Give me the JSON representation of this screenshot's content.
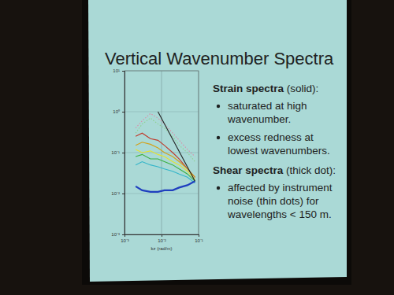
{
  "title": "Vertical Wavenumber Spectra",
  "sections": [
    {
      "heading": "Strain spectra",
      "note": "(solid):",
      "bullets": [
        [
          "saturated at high",
          "wavenumber."
        ],
        [
          "excess redness at",
          "lowest wavenumbers."
        ]
      ]
    },
    {
      "heading": "Shear spectra",
      "note": "(thick dot):",
      "bullets": [
        [
          "affected by instrument",
          "noise (thin dots) for",
          "wavelengths < 150 m."
        ]
      ]
    }
  ],
  "chart_data": {
    "type": "line",
    "log": true,
    "grid": true,
    "x_label": "kz (rad/m)",
    "xlim": [
      0.001,
      0.1
    ],
    "xticks": [
      {
        "value": 0.001,
        "label": "10⁻³"
      },
      {
        "value": 0.01,
        "label": "10⁻²"
      },
      {
        "value": 0.1,
        "label": "10⁻¹"
      }
    ],
    "ylim": [
      0.001,
      10
    ],
    "yticks": [
      {
        "value": 0.001,
        "label": "10⁻³"
      },
      {
        "value": 0.01,
        "label": "10⁻²"
      },
      {
        "value": 0.1,
        "label": "10⁻¹"
      },
      {
        "value": 1,
        "label": "10⁰"
      },
      {
        "value": 10,
        "label": "10¹"
      }
    ],
    "x": [
      0.002,
      0.003,
      0.005,
      0.008,
      0.012,
      0.02,
      0.03,
      0.05,
      0.08
    ],
    "series": [
      {
        "color": "#c0392b",
        "line_style": "solid",
        "values": [
          0.25,
          0.3,
          0.22,
          0.2,
          0.15,
          0.1,
          0.07,
          0.04,
          0.025
        ]
      },
      {
        "color": "#d4a017",
        "line_style": "solid",
        "values": [
          0.15,
          0.18,
          0.16,
          0.13,
          0.1,
          0.08,
          0.06,
          0.04,
          0.025
        ]
      },
      {
        "color": "#e6e22e",
        "line_style": "solid",
        "values": [
          0.12,
          0.1,
          0.11,
          0.09,
          0.08,
          0.06,
          0.05,
          0.035,
          0.022
        ]
      },
      {
        "color": "#3cb043",
        "line_style": "solid",
        "values": [
          0.08,
          0.09,
          0.07,
          0.07,
          0.06,
          0.05,
          0.04,
          0.03,
          0.02
        ]
      },
      {
        "color": "#33b5c9",
        "line_style": "solid",
        "values": [
          0.05,
          0.06,
          0.05,
          0.045,
          0.04,
          0.035,
          0.03,
          0.025,
          0.018
        ]
      },
      {
        "color": "#1f3fbf",
        "line_style": "thick",
        "values": [
          0.015,
          0.012,
          0.011,
          0.011,
          0.012,
          0.012,
          0.014,
          0.016,
          0.02
        ]
      },
      {
        "color": "#d98ca8",
        "line_style": "dotted",
        "values": [
          0.4,
          0.6,
          0.9,
          0.7,
          0.5,
          0.3,
          0.2,
          0.12,
          0.08
        ]
      },
      {
        "color": "#8fd18f",
        "line_style": "dotted",
        "values": [
          0.3,
          0.5,
          0.7,
          0.5,
          0.4,
          0.25,
          0.15,
          0.1,
          0.06
        ]
      },
      {
        "color": "#222222",
        "line_style": "solid",
        "x": [
          0.008,
          0.08
        ],
        "values": [
          1,
          0.02
        ]
      }
    ]
  }
}
